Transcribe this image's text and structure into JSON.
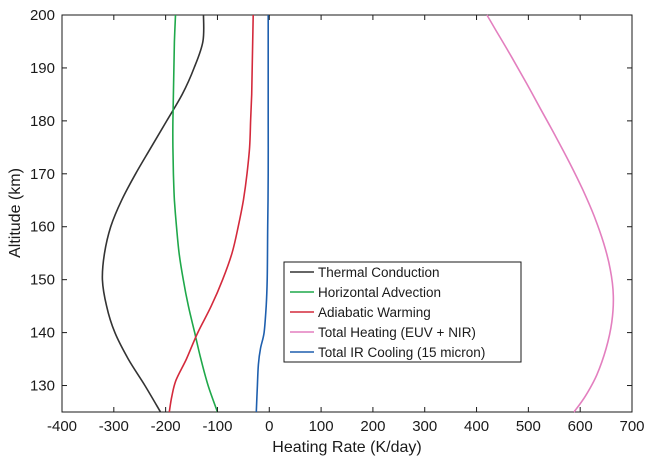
{
  "chart_data": {
    "type": "line",
    "title": "",
    "xlabel": "Heating Rate (K/day)",
    "ylabel": "Altitude (km)",
    "xlim": [
      -400,
      700
    ],
    "ylim": [
      125,
      200
    ],
    "xticks": [
      -400,
      -300,
      -200,
      -100,
      0,
      100,
      200,
      300,
      400,
      500,
      600,
      700
    ],
    "yticks": [
      130,
      140,
      150,
      160,
      170,
      180,
      190,
      200
    ],
    "grid": false,
    "legend_position": "center-right",
    "series": [
      {
        "name": "Thermal Conduction",
        "color": "#333333",
        "points": [
          [
            -210,
            125
          ],
          [
            -240,
            130
          ],
          [
            -272,
            135
          ],
          [
            -298,
            140
          ],
          [
            -314,
            145
          ],
          [
            -322,
            150
          ],
          [
            -318,
            155
          ],
          [
            -306,
            160
          ],
          [
            -285,
            165
          ],
          [
            -258,
            170
          ],
          [
            -228,
            175
          ],
          [
            -198,
            180
          ],
          [
            -168,
            185
          ],
          [
            -145,
            190
          ],
          [
            -128,
            195
          ],
          [
            -127,
            200
          ]
        ]
      },
      {
        "name": "Horizontal Advection",
        "color": "#1fa84a",
        "points": [
          [
            -100,
            125
          ],
          [
            -118,
            130
          ],
          [
            -132,
            135
          ],
          [
            -144,
            140
          ],
          [
            -156,
            145
          ],
          [
            -166,
            150
          ],
          [
            -174,
            155
          ],
          [
            -179,
            160
          ],
          [
            -183,
            165
          ],
          [
            -185,
            170
          ],
          [
            -186,
            175
          ],
          [
            -186,
            180
          ],
          [
            -185,
            185
          ],
          [
            -184,
            190
          ],
          [
            -183,
            195
          ],
          [
            -181,
            200
          ]
        ]
      },
      {
        "name": "Adiabatic Warming",
        "color": "#d42a3c",
        "points": [
          [
            -193,
            125
          ],
          [
            -188,
            128
          ],
          [
            -180,
            131
          ],
          [
            -160,
            135
          ],
          [
            -138,
            140
          ],
          [
            -112,
            145
          ],
          [
            -90,
            150
          ],
          [
            -72,
            155
          ],
          [
            -60,
            160
          ],
          [
            -50,
            165
          ],
          [
            -43,
            170
          ],
          [
            -38,
            175
          ],
          [
            -36,
            180
          ],
          [
            -34,
            185
          ],
          [
            -33,
            190
          ],
          [
            -32,
            195
          ],
          [
            -31,
            200
          ]
        ]
      },
      {
        "name": "Total Heating (EUV + NIR)",
        "color": "#e37fbf",
        "points": [
          [
            588,
            125
          ],
          [
            610,
            128
          ],
          [
            632,
            132
          ],
          [
            650,
            137
          ],
          [
            661,
            142
          ],
          [
            664,
            147
          ],
          [
            658,
            152
          ],
          [
            645,
            157
          ],
          [
            627,
            162
          ],
          [
            605,
            167
          ],
          [
            580,
            172
          ],
          [
            553,
            177
          ],
          [
            525,
            182
          ],
          [
            497,
            187
          ],
          [
            468,
            192
          ],
          [
            438,
            197
          ],
          [
            420,
            200
          ]
        ]
      },
      {
        "name": "Total IR Cooling (15 micron)",
        "color": "#1e5fae",
        "points": [
          [
            -25,
            125
          ],
          [
            -23,
            130
          ],
          [
            -21,
            134
          ],
          [
            -17,
            137
          ],
          [
            -10,
            140
          ],
          [
            -6,
            145
          ],
          [
            -4,
            150
          ],
          [
            -3,
            160
          ],
          [
            -2,
            170
          ],
          [
            -2,
            180
          ],
          [
            -2,
            190
          ],
          [
            -2,
            200
          ]
        ]
      }
    ]
  }
}
